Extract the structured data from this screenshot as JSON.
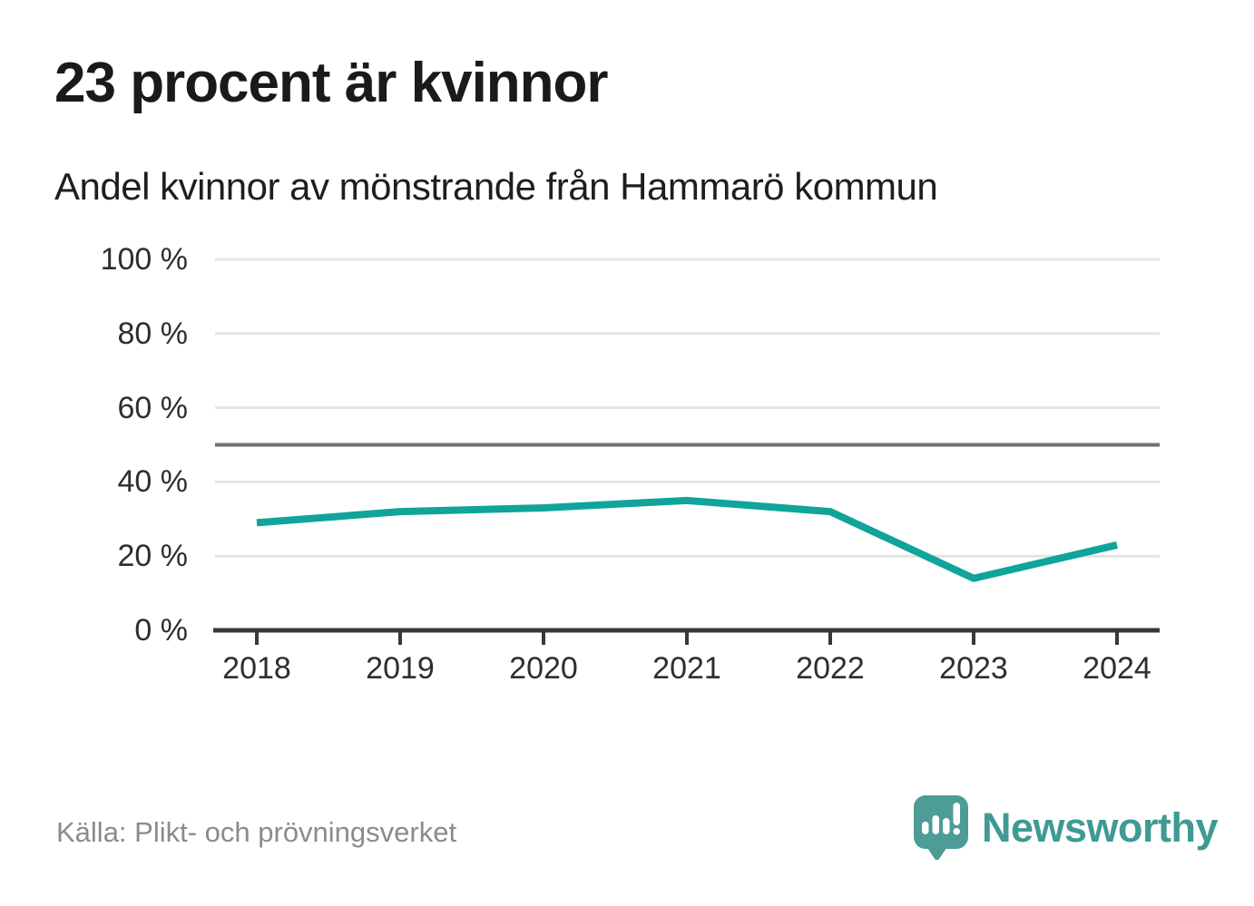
{
  "header": {
    "title": "23 procent är kvinnor",
    "subtitle": "Andel kvinnor av mönstrande från Hammarö kommun"
  },
  "chart_data": {
    "type": "line",
    "title": "23 procent är kvinnor",
    "subtitle": "Andel kvinnor av mönstrande från Hammarö kommun",
    "categories": [
      "2018",
      "2019",
      "2020",
      "2021",
      "2022",
      "2023",
      "2024"
    ],
    "series": [
      {
        "name": "Andel kvinnor av mönstrande",
        "values": [
          29,
          32,
          33,
          35,
          32,
          14,
          23
        ]
      }
    ],
    "unit": "%",
    "xlabel": "",
    "ylabel": "",
    "ylim": [
      0,
      100
    ],
    "yticks": [
      0,
      20,
      40,
      60,
      80,
      100
    ],
    "ytick_labels": [
      "0 %",
      "20 %",
      "40 %",
      "60 %",
      "80 %",
      "100 %"
    ],
    "reference_line": 50,
    "grid": "horizontal",
    "legend": "none",
    "line_color": "#10a49a",
    "gridline_color": "#e4e4e4",
    "reference_line_color": "#6e6e6e",
    "axis_color": "#383838"
  },
  "footer": {
    "source": "Källa: Plikt- och prövningsverket",
    "brand": "Newsworthy",
    "brand_color": "#4d9c96"
  }
}
